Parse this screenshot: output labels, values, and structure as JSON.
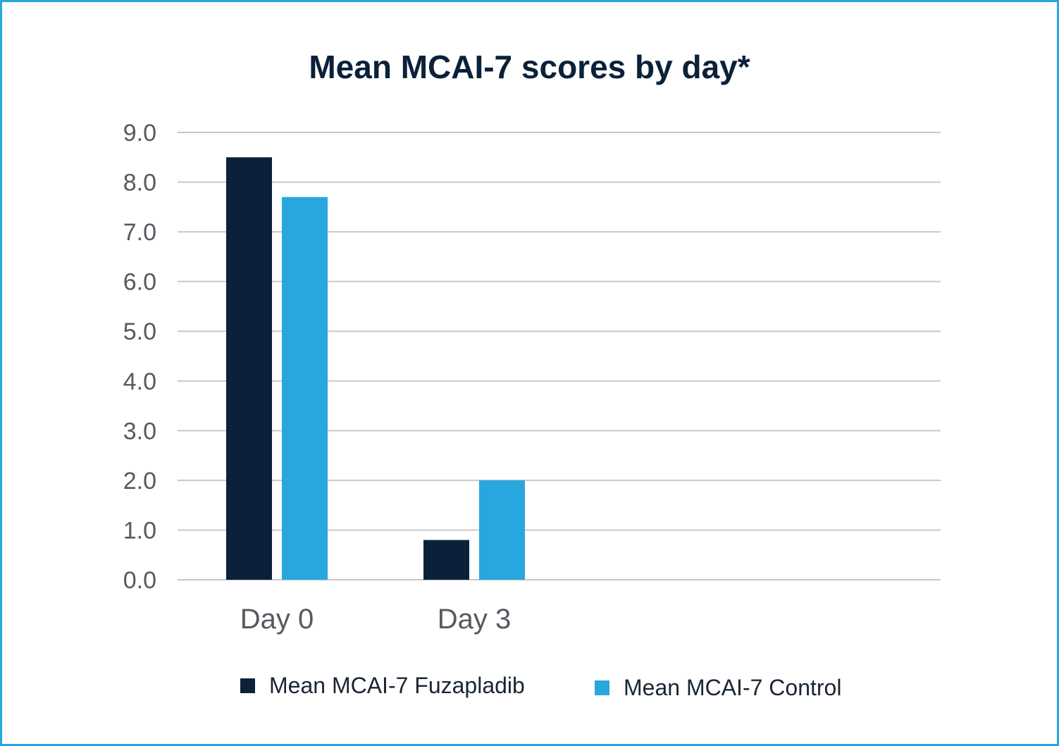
{
  "chart_data": {
    "type": "bar",
    "title": "Mean MCAI-7 scores by day*",
    "xlabel": "",
    "ylabel": "",
    "categories": [
      "Day 0",
      "Day 3"
    ],
    "series": [
      {
        "name": "Mean MCAI-7 Fuzapladib",
        "values": [
          8.5,
          0.8
        ],
        "color": "#0b2139"
      },
      {
        "name": "Mean MCAI-7 Control",
        "values": [
          7.7,
          2.0
        ],
        "color": "#27a7dd"
      }
    ],
    "ylim": [
      0,
      9
    ],
    "yticks": [
      "0.0",
      "1.0",
      "2.0",
      "3.0",
      "4.0",
      "5.0",
      "6.0",
      "7.0",
      "8.0",
      "9.0"
    ],
    "grid": true,
    "legend": "bottom"
  },
  "colors": {
    "border": "#29a6dc",
    "title": "#0b2139",
    "grid": "#c8c8c8",
    "tick_text": "#555a60"
  }
}
